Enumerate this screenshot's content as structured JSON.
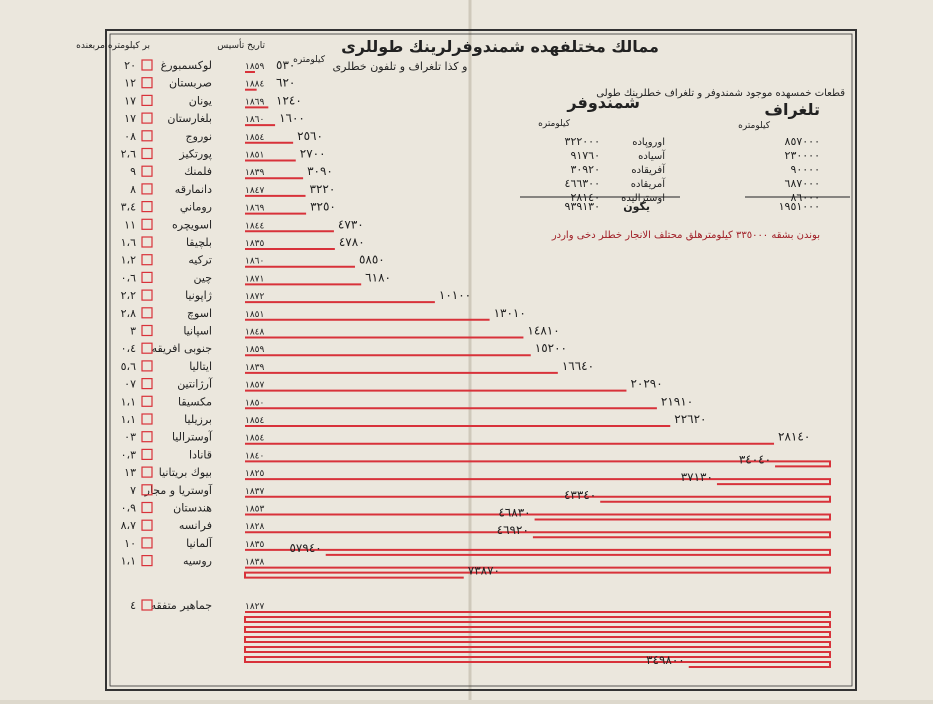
{
  "chart_data": {
    "type": "wrapped-bar",
    "title": "ممالك مختلفهده شمندوفرلرينك طوللرى",
    "subtitle": "و كذا تلغراف و تلفون خطلرى",
    "column_headers": [
      "بر كيلومتره مربعنده",
      "تاريخ تأسيس",
      "كيلومتره"
    ],
    "color": "#d8323a",
    "categories": [
      "لوكسمبورغ",
      "صربستان",
      "يونان",
      "بلغارستان",
      "نوروج",
      "پورتكيز",
      "فلمنك",
      "دانمارقه",
      "روماني",
      "اسويچره",
      "بلچيقا",
      "تركيه",
      "چين",
      "ژاپونيا",
      "اسوچ",
      "اسپانيا",
      "جنوبى افريقه",
      "ايتاليا",
      "آرژانتين",
      "مكسيقا",
      "برزيليا",
      "آوستراليا",
      "قانادا",
      "بيوك بريتانيا",
      "آوستريا و مجار",
      "هندستان",
      "فرانسه",
      "آلمانيا",
      "روسيه",
      "جماهير متفقه"
    ],
    "years": [
      "١٨٥٩",
      "١٨٨٤",
      "١٨٦٩",
      "١٨٦٠",
      "١٨٥٤",
      "١٨٥١",
      "١٨٣٩",
      "١٨٤٧",
      "١٨٦٩",
      "١٨٤٤",
      "١٨٣٥",
      "١٨٦٠",
      "١٨٧١",
      "١٨٧٢",
      "١٨٥١",
      "١٨٤٨",
      "١٨٥٩",
      "١٨٣٩",
      "١٨٥٧",
      "١٨٥٠",
      "١٨٥٤",
      "١٨٥٤",
      "١٨٤٠",
      "١٨٢٥",
      "١٨٣٧",
      "١٨٥٣",
      "١٨٢٨",
      "١٨٣٥",
      "١٨٣٨",
      "١٨٢٧"
    ],
    "densities": [
      "٢٠",
      "١٢",
      "١٧",
      "١٧",
      "٠٨",
      "٢،٦",
      "٩",
      "٨",
      "٣،٤",
      "١١",
      "١،٦",
      "١،٢",
      "٠،٦",
      "٢،٢",
      "٢،٨",
      "٣",
      "٠،٤",
      "٥،٦",
      "٠٧",
      "١،١",
      "١،١",
      "٠٣",
      "٠،٣",
      "١٣",
      "٧",
      "٠،٩",
      "٨،٧",
      "١٠",
      "١،١",
      "٤"
    ],
    "values": [
      530,
      620,
      1240,
      1600,
      2560,
      2700,
      3090,
      3220,
      3250,
      4730,
      4780,
      5850,
      6180,
      10100,
      13010,
      14810,
      15200,
      16640,
      20290,
      21910,
      22620,
      28140,
      34040,
      37130,
      43340,
      46830,
      46920,
      57940,
      73870,
      349800
    ],
    "value_labels": [
      "٥٣٠",
      "٦٢٠",
      "١٢٤٠",
      "١٦٠٠",
      "٢٥٦٠",
      "٢٧٠٠",
      "٣٠٩٠",
      "٣٢٢٠",
      "٣٢٥٠",
      "٤٧٣٠",
      "٤٧٨٠",
      "٥٨٥٠",
      "٦١٨٠",
      "١٠١٠٠",
      "١٣٠١٠",
      "١٤٨١٠",
      "١٥٢٠٠",
      "١٦٦٤٠",
      "٢٠٢٩٠",
      "٢١٩١٠",
      "٢٢٦٢٠",
      "٢٨١٤٠",
      "٣٤٠٤٠",
      "٣٧١٣٠",
      "٤٣٣٤٠",
      "٤٦٨٣٠",
      "٤٦٩٢٠",
      "٥٧٩٤٠",
      "٧٣٨٧٠",
      "٣٤٩٨٠٠"
    ]
  },
  "tables": {
    "heading": "قطعات خمسهده موجود شمندوفر و تلغراف خطلرينك طولى",
    "telegraph": {
      "title": "تلغراف",
      "unit": "كيلومتره",
      "values": [
        "٨٥٧٠٠٠",
        "٢٣٠٠٠٠",
        "٩٠٠٠٠",
        "٦٨٧٠٠٠",
        "٨٦٠٠٠"
      ],
      "total": "١٩٥١٠٠٠"
    },
    "railway": {
      "title": "شمندوفر",
      "unit": "كيلومتره",
      "regions": [
        "اوروپاده",
        "آسياده",
        "آفريقاده",
        "آمريقاده",
        "اوستراليده"
      ],
      "values": [
        "٣٢٢٠٠٠",
        "٩١٧٦٠",
        "٣٠٩٢٠",
        "٤٦٦٣٠٠",
        "٢٨١٤٠"
      ],
      "total_label": "يكون",
      "total": "٩٣٩١٣٠"
    },
    "note": "بوندن بشقه ٣٣٥٠٠٠ كيلومترهلق محتلف الانجار خطلر دخى واردر"
  }
}
